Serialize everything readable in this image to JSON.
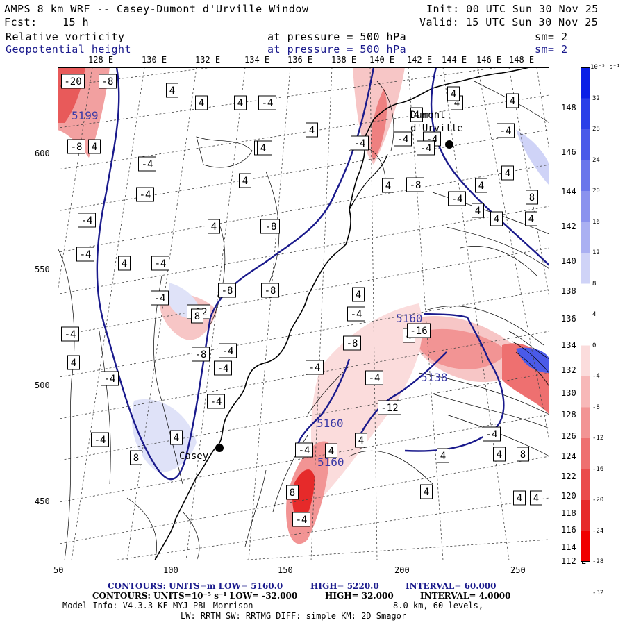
{
  "header": {
    "title": "AMPS 8 km WRF -- Casey-Dumont d'Urville Window",
    "init": "Init: 00 UTC Sun 30 Nov 25",
    "fcst_label": "Fcst:",
    "fcst_value": "15 h",
    "valid": "Valid: 15 UTC Sun 30 Nov 25"
  },
  "fields": [
    {
      "name": "Relative vorticity",
      "level": "at pressure =  500 hPa",
      "smooth": "sm= 2",
      "color": "#000000"
    },
    {
      "name": "Geopotential height",
      "level": "at pressure =  500 hPa",
      "smooth": "sm= 2",
      "color": "#1a1a8c"
    }
  ],
  "map": {
    "top_lon_labels": [
      "128 E",
      "130 E",
      "132 E",
      "134 E",
      "136 E",
      "138 E",
      "140 E",
      "142 E",
      "144 E",
      "146 E",
      "148 E"
    ],
    "right_lon_labels": [
      "148 E",
      "146 E",
      "144 E",
      "142 E",
      "140 E",
      "138 E",
      "136 E",
      "134 E",
      "132 E",
      "130 E",
      "128 E",
      "126 E",
      "124 E",
      "122 E",
      "120 E",
      "118 E",
      "116 E",
      "114 E",
      "112 E"
    ],
    "x_ticks": [
      "50",
      "100",
      "150",
      "200",
      "250"
    ],
    "y_ticks": [
      "600",
      "550",
      "500",
      "450"
    ],
    "stations": [
      {
        "name": "Dumont",
        "name2": "d'Urville"
      },
      {
        "name": "Casey"
      }
    ],
    "height_labels": [
      "5160",
      "5138",
      "5160",
      "5160",
      "5199"
    ],
    "vort_labels": [
      "-20",
      "-8",
      "4",
      "4",
      "4",
      "-4",
      "-8",
      "4",
      "-4",
      "4",
      "-4",
      "4",
      "4",
      "-4",
      "-4",
      "-4",
      "-4",
      "4",
      "4",
      "-4",
      "4",
      "-4",
      "4",
      "4",
      "-4",
      "-4",
      "-8",
      "4",
      "4",
      "-4",
      "4",
      "8",
      "4",
      "4",
      "4",
      "-4",
      "-8",
      "4",
      "-4",
      "-8",
      "-12",
      "-8",
      "-4",
      "8",
      "-4",
      "-8",
      "-4",
      "4",
      "4",
      "-8",
      "4",
      "-4",
      "-4",
      "-4",
      "-16",
      "-12",
      "-4",
      "-4",
      "4",
      "-4",
      "-4",
      "4",
      "8",
      "-4",
      "4",
      "8",
      "-4",
      "4",
      "4",
      "-4",
      "4",
      "8",
      "4",
      "4"
    ]
  },
  "colorbar": {
    "unit": "10⁻⁵ s⁻¹",
    "ticks": [
      "32",
      "28",
      "24",
      "20",
      "16",
      "12",
      "8",
      "4",
      "0",
      "-4",
      "-8",
      "-12",
      "-16",
      "-20",
      "-24",
      "-28",
      "-32"
    ],
    "colors": [
      "#0a1fe6",
      "#2a3fe8",
      "#4a5ae9",
      "#6a76eb",
      "#8a92ee",
      "#aab0f2",
      "#cfd3f7",
      "#ffffff",
      "#ffffff",
      "#fbdcdc",
      "#f7b8b8",
      "#f29494",
      "#ee7070",
      "#ea4c4c",
      "#e62a2a",
      "#f00000"
    ]
  },
  "footer": {
    "line1a": "CONTOURS:  UNITS=m  LOW=  5160.0",
    "line1b": "HIGH=  5220.0",
    "line1c": "INTERVAL=  60.000",
    "line2a": "CONTOURS:  UNITS=10⁻⁵ s⁻¹  LOW= -32.000",
    "line2b": "HIGH=  32.000",
    "line2c": "INTERVAL=  4.0000",
    "line3a": "Model Info: V4.3.3   KF     MYJ PBL  Morrison",
    "line3b": "8.0 km,  60 levels,",
    "line4": "LW: RRTM SW: RRTMG   DIFF: simple KM: 2D Smagor"
  }
}
